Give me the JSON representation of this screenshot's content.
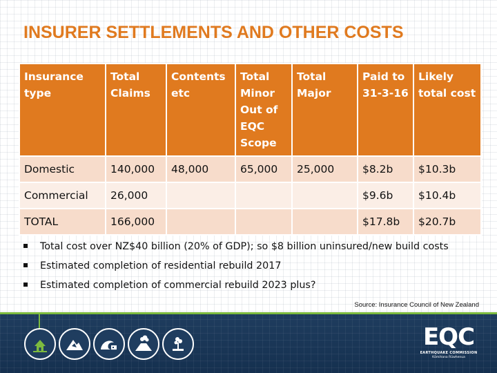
{
  "title": "INSURER SETTLEMENTS AND OTHER COSTS",
  "table": {
    "headers": [
      "Insurance type",
      "Total Claims",
      "Contents etc",
      "Total Minor Out of EQC Scope",
      "Total Major",
      "Paid to 31-3-16",
      "Likely total cost"
    ],
    "rows": [
      [
        "Domestic",
        "140,000",
        "48,000",
        "65,000",
        "25,000",
        "$8.2b",
        "$10.3b"
      ],
      [
        "Commercial",
        "26,000",
        "",
        "",
        "",
        "$9.6b",
        "$10.4b"
      ],
      [
        "TOTAL",
        "166,000",
        "",
        "",
        "",
        "$17.8b",
        "$20.7b"
      ]
    ]
  },
  "bullets": [
    "Total cost over NZ$40 billion (20% of GDP); so $8 billion uninsured/new build costs",
    "Estimated completion of residential rebuild 2017",
    "Estimated completion of commercial rebuild 2023 plus?"
  ],
  "source": "Source: Insurance Council of New Zealand",
  "footer": {
    "icons": [
      "house-icon",
      "landslip-icon",
      "tsunami-icon",
      "volcano-icon",
      "fire-icon"
    ],
    "logo": {
      "text": "EQC",
      "subtitle": "EARTHQUAKE COMMISSION",
      "maori": "Kōmihana Rūwhenua"
    }
  },
  "colors": {
    "accent": "#e07a1f",
    "row_odd": "#f7dccb",
    "row_even": "#fbeee6",
    "footer": "#1f3d5f",
    "footer_line": "#7dbb3f"
  }
}
